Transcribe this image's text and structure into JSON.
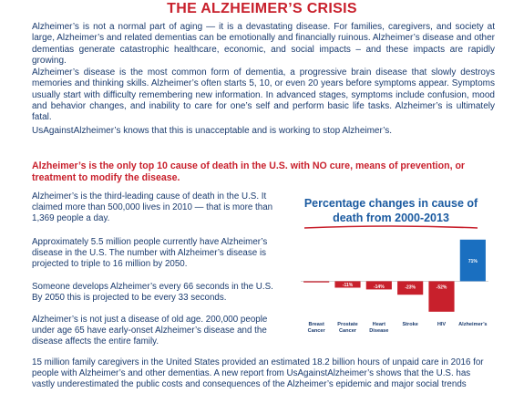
{
  "title": "THE ALZHEIMER’S CRISIS",
  "intro": {
    "p1": "Alzheimer’s is not a normal part of aging — it is a devastating disease. For families, caregivers, and society at large, Alzheimer’s and related dementias can be emotionally and financially ruinous. Alzheimer’s disease and other dementias generate catastrophic healthcare, economic, and social impacts – and these impacts are rapidly growing.",
    "p2": "Alzheimer’s disease is the most common form of dementia, a progressive brain disease that slowly destroys memories and thinking skills. Alzheimer’s often starts 5, 10, or even 20 years before symptoms appear. Symptoms usually start with difficulty remembering new information. In advanced stages, symptoms include confusion, mood and behavior changes, and inability to care for one’s self and perform basic life tasks. Alzheimer’s is ultimately fatal.",
    "p3": "UsAgainstAlzheimer’s knows that this is unacceptable and is working to stop Alzheimer’s."
  },
  "subheading": "Alzheimer’s is the only top 10 cause of death in the U.S. with NO cure, means of prevention, or treatment to modify the disease.",
  "left_paragraphs": [
    "Alzheimer’s is the third-leading cause of death in the U.S. It claimed more than 500,000 lives in 2010 — that is more than 1,369 people a day.",
    "Approximately 5.5 million people currently have Alzheimer’s disease in the U.S. The number with Alzheimer’s disease is projected to triple to 16 million by 2050.",
    "Someone develops Alzheimer’s every 66 seconds in the U.S. By 2050 this is projected to be every 33 seconds.",
    "Alzheimer’s is not just a disease of old age. 200,000 people under age 65 have early-onset Alzheimer’s disease and the disease affects the entire family."
  ],
  "bottom_text": "15 million family caregivers in the United States provided an estimated 18.2 billion hours of unpaid care in 2016 for people with Alzheimer’s and other dementias. A new report from UsAgainstAlzheimer’s shows that the U.S. has vastly underestimated the public costs and consequences of the Alzheimer’s epidemic and major social trends",
  "colors": {
    "red": "#c8202c",
    "blue": "#1a5aa0",
    "text": "#1a3b6e"
  },
  "chart_data": {
    "type": "bar",
    "title": "Percentage changes in cause of death from 2000-2013",
    "categories": [
      "Breast Cancer",
      "Prostate Cancer",
      "Heart Disease",
      "Stroke",
      "HIV",
      "Alzheimer’s"
    ],
    "values": [
      -2,
      -11,
      -14,
      -23,
      -52,
      71
    ],
    "value_labels": [
      "-2%",
      "-11%",
      "-14%",
      "-23%",
      "-52%",
      "71%"
    ],
    "xlabel": "",
    "ylabel": "",
    "ylim": [
      -60,
      80
    ],
    "colors": {
      "negative": "#c8202c",
      "positive": "#1a6fc0"
    }
  }
}
